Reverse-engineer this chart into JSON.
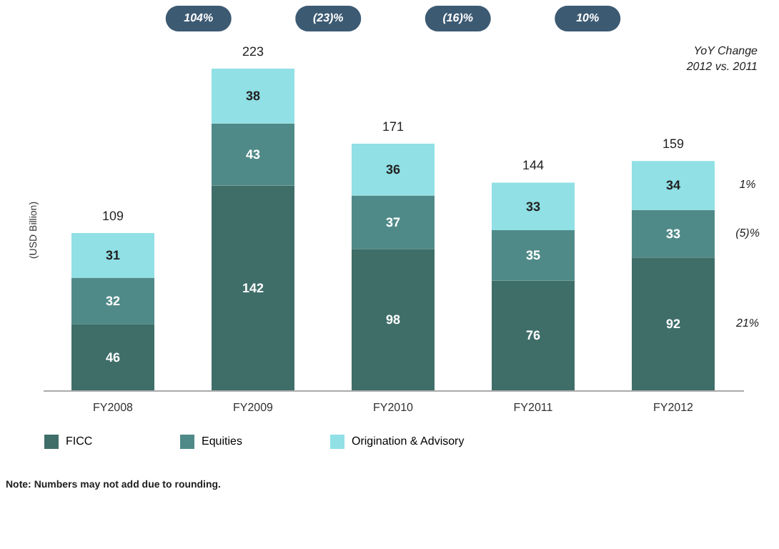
{
  "chart_data": {
    "type": "bar",
    "stacked": true,
    "ylabel": "(USD Billion)",
    "categories": [
      "FY2008",
      "FY2009",
      "FY2010",
      "FY2011",
      "FY2012"
    ],
    "series": [
      {
        "name": "FICC",
        "color": "#3f6e69",
        "values": [
          46,
          142,
          98,
          76,
          92
        ]
      },
      {
        "name": "Equities",
        "color": "#4f8a88",
        "values": [
          32,
          43,
          37,
          35,
          33
        ]
      },
      {
        "name": "Origination  & Advisory",
        "color": "#90e0e5",
        "values": [
          31,
          38,
          36,
          33,
          34
        ]
      }
    ],
    "totals": [
      "109",
      "223",
      "171",
      "144",
      "159"
    ],
    "data_labels": true,
    "tick_labels": "x",
    "grid": false,
    "legend": "bottom",
    "annotations": [
      "104%",
      "(23)%",
      "(16)%",
      "10%",
      "YoY Change\n2012 vs. 2011",
      "1%",
      "(5)%",
      "21%",
      "Note: Numbers may not add due to rounding."
    ]
  }
}
